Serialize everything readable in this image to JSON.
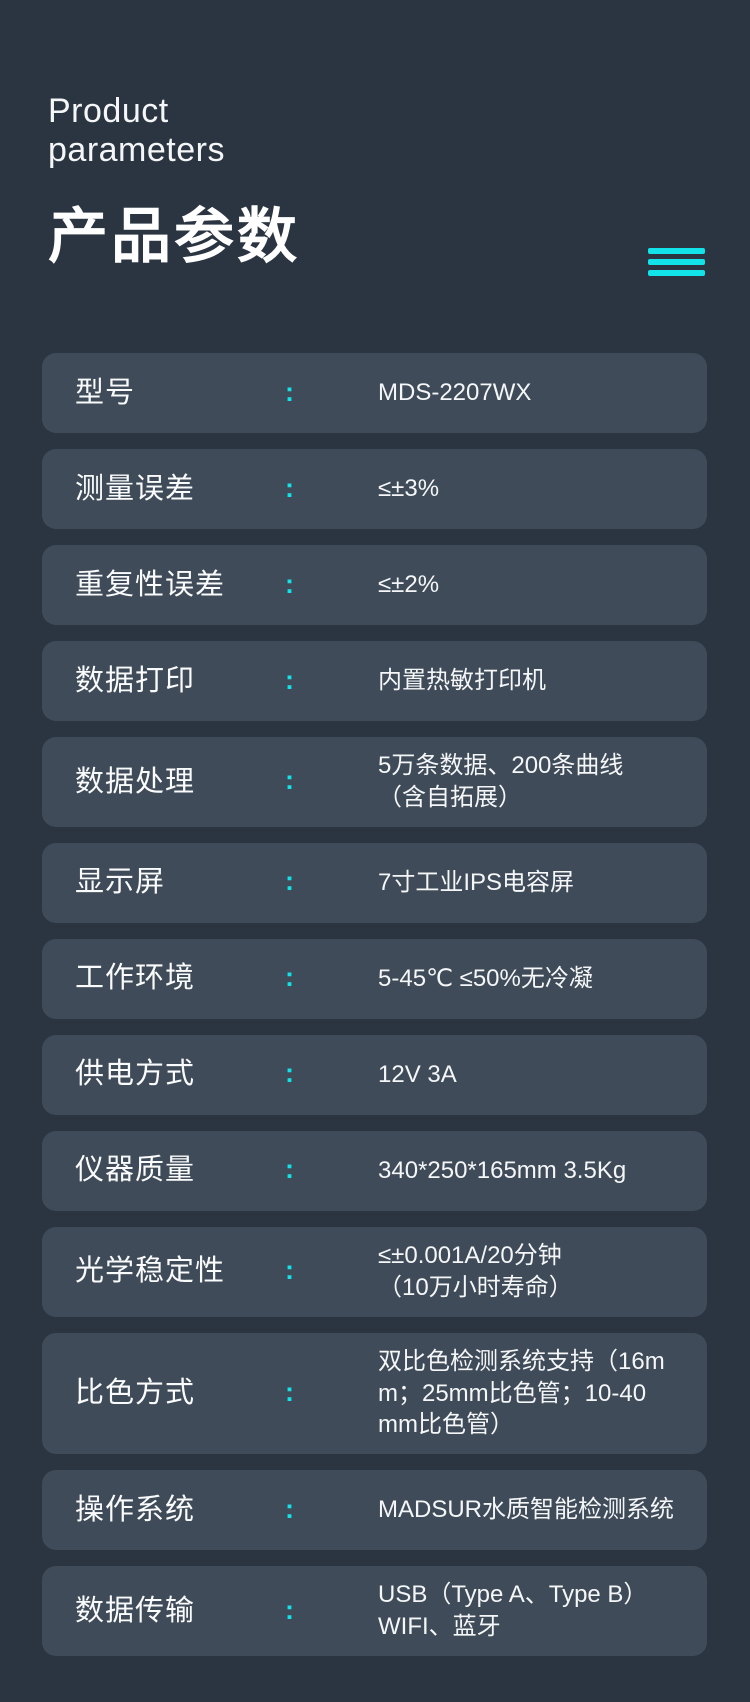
{
  "page": {
    "subtitle_en_line1": "Product",
    "subtitle_en_line2": "parameters",
    "title_zh": "产品参数"
  },
  "separator": ":",
  "colors": {
    "background": "#2b3541",
    "card": "#3f4b58",
    "accent_cyan": "#11e3e8",
    "text": "#ffffff"
  },
  "decor": {
    "accent_lines_icon": "three-cyan-bars",
    "accent_lines_count": 3
  },
  "parameters": [
    {
      "label": "型号",
      "value": "MDS-2207WX"
    },
    {
      "label": "测量误差",
      "value": "≤±3%"
    },
    {
      "label": "重复性误差",
      "value": "≤±2%"
    },
    {
      "label": "数据打印",
      "value": "内置热敏打印机"
    },
    {
      "label": "数据处理",
      "value": "5万条数据、200条曲线\n（含自拓展）"
    },
    {
      "label": "显示屏",
      "value": "7寸工业IPS电容屏"
    },
    {
      "label": "工作环境",
      "value": "5-45℃ ≤50%无冷凝"
    },
    {
      "label": "供电方式",
      "value": "12V 3A"
    },
    {
      "label": "仪器质量",
      "value": "340*250*165mm 3.5Kg"
    },
    {
      "label": "光学稳定性",
      "value": "≤±0.001A/20分钟\n（10万小时寿命）"
    },
    {
      "label": "比色方式",
      "value": "双比色检测系统支持（16m\nm；25mm比色管；10-40\nmm比色管）"
    },
    {
      "label": "操作系统",
      "value": "MADSUR水质智能检测系统"
    },
    {
      "label": "数据传输",
      "value": "USB（Type A、Type B）\nWIFI、蓝牙"
    }
  ]
}
